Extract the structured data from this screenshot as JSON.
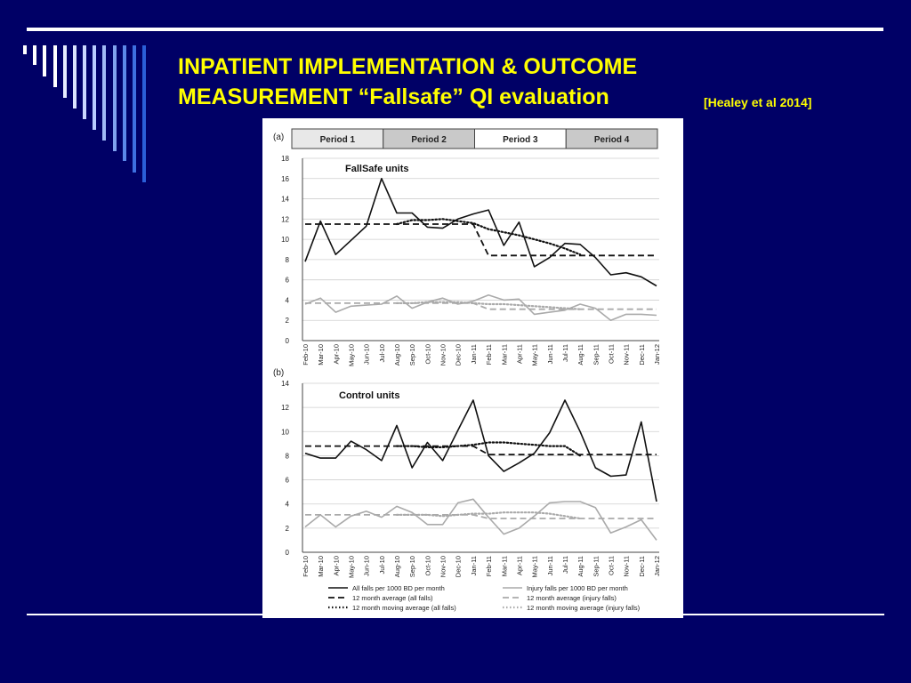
{
  "slide": {
    "title_line1": "INPATIENT IMPLEMENTATION & OUTCOME",
    "title_line2": "MEASUREMENT “Fallsafe” QI evaluation",
    "citation": "[Healey et al 2014]",
    "background_color": "#000066",
    "title_color": "#ffff00"
  },
  "periods": [
    "Period 1",
    "Period 2",
    "Period 3",
    "Period 4"
  ],
  "legend": [
    {
      "label": "All falls per 1000 BD per month",
      "style": "solid-black"
    },
    {
      "label": "Injury falls per 1000 BD per month",
      "style": "solid-grey"
    },
    {
      "label": "12 month average (all falls)",
      "style": "dashed-black"
    },
    {
      "label": "12 month average (injury falls)",
      "style": "dashed-grey"
    },
    {
      "label": "12 month moving average (all falls)",
      "style": "dotted-black"
    },
    {
      "label": "12 month moving average (injury falls)",
      "style": "dotted-grey"
    }
  ],
  "chart_data": [
    {
      "type": "line",
      "panel_label": "(a)",
      "title": "FallSafe units",
      "categories": [
        "Feb-10",
        "Mar-10",
        "Apr-10",
        "May-10",
        "Jun-10",
        "Jul-10",
        "Aug-10",
        "Sep-10",
        "Oct-10",
        "Nov-10",
        "Dec-10",
        "Jan-11",
        "Feb-11",
        "Mar-11",
        "Apr-11",
        "May-11",
        "Jun-11",
        "Jul-11",
        "Aug-11",
        "Sep-11",
        "Oct-11",
        "Nov-11",
        "Dec-11",
        "Jan-12"
      ],
      "ylim": [
        0,
        18
      ],
      "yticks": [
        0,
        2,
        4,
        6,
        8,
        10,
        12,
        14,
        16,
        18
      ],
      "series": [
        {
          "name": "All falls per 1000 BD per month",
          "color": "#111111",
          "style": "solid",
          "values": [
            7.8,
            11.8,
            8.5,
            9.9,
            11.3,
            16.0,
            12.6,
            12.6,
            11.2,
            11.1,
            12.0,
            12.5,
            12.9,
            9.4,
            11.7,
            7.3,
            8.2,
            9.6,
            9.5,
            8.2,
            6.5,
            6.7,
            6.3,
            5.4
          ]
        },
        {
          "name": "Injury falls per 1000 BD per month",
          "color": "#aaaaaa",
          "style": "solid",
          "values": [
            3.6,
            4.2,
            2.8,
            3.4,
            3.5,
            3.6,
            4.4,
            3.2,
            3.8,
            4.2,
            3.6,
            3.9,
            4.5,
            4.0,
            4.1,
            2.6,
            2.8,
            3.0,
            3.6,
            3.2,
            2.0,
            2.6,
            2.6,
            2.5
          ]
        },
        {
          "name": "12 month average (all falls)",
          "color": "#111111",
          "style": "dashed",
          "values": [
            11.5,
            11.5,
            11.5,
            11.5,
            11.5,
            11.5,
            11.5,
            11.5,
            11.5,
            11.5,
            11.5,
            11.5,
            8.4,
            8.4,
            8.4,
            8.4,
            8.4,
            8.4,
            8.4,
            8.4,
            8.4,
            8.4,
            8.4,
            8.4
          ]
        },
        {
          "name": "12 month average (injury falls)",
          "color": "#aaaaaa",
          "style": "dashed",
          "values": [
            3.7,
            3.7,
            3.7,
            3.7,
            3.7,
            3.7,
            3.7,
            3.7,
            3.7,
            3.7,
            3.7,
            3.7,
            3.1,
            3.1,
            3.1,
            3.1,
            3.1,
            3.1,
            3.1,
            3.1,
            3.1,
            3.1,
            3.1,
            3.1
          ]
        },
        {
          "name": "12 month moving average (all falls)",
          "color": "#111111",
          "style": "dotted",
          "values": [
            null,
            null,
            null,
            null,
            null,
            null,
            11.5,
            11.9,
            11.9,
            12.0,
            11.8,
            11.6,
            11.0,
            10.7,
            10.4,
            10.0,
            9.6,
            9.1,
            8.5,
            null,
            null,
            null,
            null,
            null
          ]
        },
        {
          "name": "12 month moving average (injury falls)",
          "color": "#aaaaaa",
          "style": "dotted",
          "values": [
            null,
            null,
            null,
            null,
            null,
            null,
            3.7,
            3.7,
            3.8,
            3.8,
            3.8,
            3.7,
            3.6,
            3.6,
            3.5,
            3.4,
            3.3,
            3.2,
            3.1,
            null,
            null,
            null,
            null,
            null
          ]
        }
      ]
    },
    {
      "type": "line",
      "panel_label": "(b)",
      "title": "Control units",
      "categories": [
        "Feb-10",
        "Mar-10",
        "Apr-10",
        "May-10",
        "Jun-10",
        "Jul-10",
        "Aug-10",
        "Sep-10",
        "Oct-10",
        "Nov-10",
        "Dec-10",
        "Jan-11",
        "Feb-11",
        "Mar-11",
        "Apr-11",
        "May-11",
        "Jun-11",
        "Jul-11",
        "Aug-11",
        "Sep-11",
        "Oct-11",
        "Nov-11",
        "Dec-11",
        "Jan-12"
      ],
      "ylim": [
        0,
        14
      ],
      "yticks": [
        0,
        2,
        4,
        6,
        8,
        10,
        12,
        14
      ],
      "series": [
        {
          "name": "All falls per 1000 BD per month",
          "color": "#111111",
          "style": "solid",
          "values": [
            8.2,
            7.8,
            7.8,
            9.2,
            8.5,
            7.6,
            10.5,
            7.0,
            9.1,
            7.6,
            10.1,
            12.6,
            8.0,
            6.7,
            7.4,
            8.2,
            9.9,
            12.6,
            10.0,
            7.0,
            6.3,
            6.4,
            10.8,
            4.2
          ]
        },
        {
          "name": "Injury falls per 1000 BD per month",
          "color": "#aaaaaa",
          "style": "solid",
          "values": [
            2.1,
            3.1,
            2.1,
            3.0,
            3.4,
            2.9,
            3.8,
            3.3,
            2.3,
            2.3,
            4.1,
            4.4,
            2.9,
            1.5,
            2.0,
            3.0,
            4.1,
            4.2,
            4.2,
            3.7,
            1.6,
            2.1,
            2.7,
            1.0
          ]
        },
        {
          "name": "12 month average (all falls)",
          "color": "#111111",
          "style": "dashed",
          "values": [
            8.8,
            8.8,
            8.8,
            8.8,
            8.8,
            8.8,
            8.8,
            8.8,
            8.8,
            8.8,
            8.8,
            8.8,
            8.1,
            8.1,
            8.1,
            8.1,
            8.1,
            8.1,
            8.1,
            8.1,
            8.1,
            8.1,
            8.1,
            8.1
          ]
        },
        {
          "name": "12 month average (injury falls)",
          "color": "#aaaaaa",
          "style": "dashed",
          "values": [
            3.1,
            3.1,
            3.1,
            3.1,
            3.1,
            3.1,
            3.1,
            3.1,
            3.1,
            3.1,
            3.1,
            3.1,
            2.8,
            2.8,
            2.8,
            2.8,
            2.8,
            2.8,
            2.8,
            2.8,
            2.8,
            2.8,
            2.8,
            2.8
          ]
        },
        {
          "name": "12 month moving average (all falls)",
          "color": "#111111",
          "style": "dotted",
          "values": [
            null,
            null,
            null,
            null,
            null,
            null,
            8.8,
            8.8,
            8.7,
            8.7,
            8.8,
            8.9,
            9.1,
            9.1,
            9.0,
            8.9,
            8.8,
            8.8,
            8.0,
            null,
            null,
            null,
            null,
            null
          ]
        },
        {
          "name": "12 month moving average (injury falls)",
          "color": "#aaaaaa",
          "style": "dotted",
          "values": [
            null,
            null,
            null,
            null,
            null,
            null,
            3.1,
            3.1,
            3.1,
            3.0,
            3.1,
            3.2,
            3.2,
            3.3,
            3.3,
            3.3,
            3.2,
            3.0,
            2.8,
            null,
            null,
            null,
            null,
            null
          ]
        }
      ]
    }
  ]
}
